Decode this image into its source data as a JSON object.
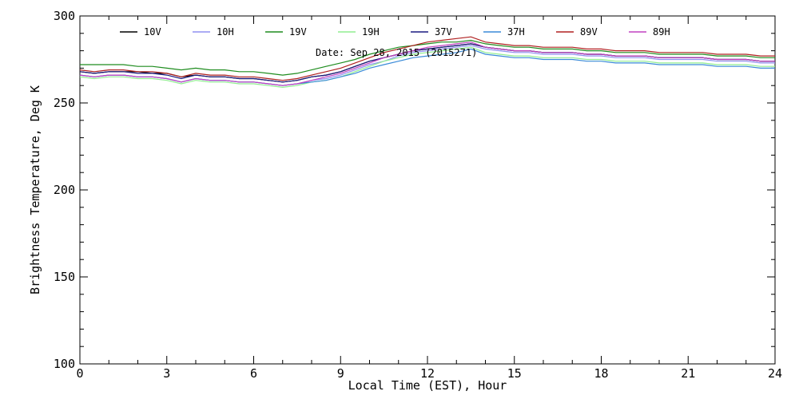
{
  "chart_data": {
    "type": "line",
    "xlabel": "Local Time (EST), Hour",
    "ylabel": "Brightness Temperature, Deg K",
    "annotation": "Date: Sep 28, 2015 (2015271)",
    "xlim": [
      0,
      24
    ],
    "ylim": [
      100,
      300
    ],
    "x_ticks": [
      0,
      3,
      6,
      9,
      12,
      15,
      18,
      21,
      24
    ],
    "y_ticks": [
      100,
      150,
      200,
      250,
      300
    ],
    "grid": false,
    "legend_position": "top",
    "x": [
      0,
      0.5,
      1,
      1.5,
      2,
      2.5,
      3,
      3.5,
      4,
      4.5,
      5,
      5.5,
      6,
      6.5,
      7,
      7.5,
      8,
      8.5,
      9,
      9.5,
      10,
      10.5,
      11,
      11.5,
      12,
      12.5,
      13,
      13.5,
      14,
      14.5,
      15,
      15.5,
      16,
      16.5,
      17,
      17.5,
      18,
      18.5,
      19,
      19.5,
      20,
      20.5,
      21,
      21.5,
      22,
      22.5,
      23,
      23.5,
      24
    ],
    "series": [
      {
        "name": "10V",
        "color": "#000000",
        "values": [
          268,
          267,
          268,
          268,
          268,
          267,
          267,
          265,
          266,
          265,
          265,
          264,
          264,
          263,
          262,
          263,
          265,
          266,
          268,
          271,
          274,
          276,
          278,
          280,
          281,
          282,
          283,
          284,
          282,
          281,
          280,
          280,
          279,
          279,
          279,
          278,
          278,
          277,
          277,
          277,
          276,
          276,
          276,
          276,
          275,
          275,
          275,
          274,
          274
        ]
      },
      {
        "name": "10H",
        "color": "#9090f0",
        "values": [
          266,
          265,
          266,
          266,
          265,
          265,
          264,
          262,
          264,
          263,
          263,
          262,
          262,
          261,
          260,
          261,
          263,
          264,
          266,
          269,
          272,
          274,
          277,
          279,
          280,
          281,
          282,
          283,
          281,
          280,
          279,
          279,
          278,
          278,
          278,
          277,
          277,
          276,
          276,
          276,
          275,
          275,
          275,
          275,
          274,
          274,
          274,
          273,
          273
        ]
      },
      {
        "name": "19V",
        "color": "#1e8c1e",
        "values": [
          272,
          272,
          272,
          272,
          271,
          271,
          270,
          269,
          270,
          269,
          269,
          268,
          268,
          267,
          266,
          267,
          269,
          271,
          273,
          275,
          278,
          280,
          282,
          283,
          284,
          285,
          285,
          286,
          284,
          283,
          282,
          282,
          281,
          281,
          281,
          280,
          280,
          279,
          279,
          279,
          278,
          278,
          278,
          278,
          277,
          277,
          277,
          276,
          276
        ]
      },
      {
        "name": "19H",
        "color": "#90ee90",
        "values": [
          265,
          264,
          265,
          265,
          264,
          264,
          263,
          261,
          263,
          262,
          262,
          261,
          261,
          260,
          259,
          260,
          262,
          263,
          265,
          268,
          271,
          274,
          276,
          278,
          279,
          280,
          281,
          282,
          279,
          278,
          277,
          277,
          276,
          276,
          276,
          275,
          275,
          274,
          274,
          274,
          273,
          273,
          273,
          273,
          272,
          272,
          272,
          271,
          271
        ]
      },
      {
        "name": "37V",
        "color": "#1a1a80",
        "values": [
          268,
          267,
          268,
          268,
          267,
          267,
          266,
          264,
          266,
          265,
          265,
          264,
          264,
          263,
          262,
          263,
          265,
          266,
          268,
          271,
          274,
          276,
          278,
          280,
          281,
          282,
          283,
          284,
          282,
          281,
          280,
          280,
          279,
          279,
          279,
          278,
          278,
          277,
          277,
          277,
          276,
          276,
          276,
          276,
          275,
          275,
          275,
          274,
          274
        ]
      },
      {
        "name": "37H",
        "color": "#3a8ad8",
        "values": [
          266,
          265,
          266,
          266,
          265,
          265,
          264,
          262,
          264,
          263,
          263,
          262,
          262,
          261,
          260,
          261,
          262,
          263,
          265,
          267,
          270,
          272,
          274,
          276,
          277,
          278,
          279,
          281,
          278,
          277,
          276,
          276,
          275,
          275,
          275,
          274,
          274,
          273,
          273,
          273,
          272,
          272,
          272,
          272,
          271,
          271,
          271,
          270,
          270
        ]
      },
      {
        "name": "89V",
        "color": "#b02020",
        "values": [
          269,
          268,
          269,
          269,
          268,
          268,
          267,
          265,
          267,
          266,
          266,
          265,
          265,
          264,
          263,
          264,
          266,
          268,
          270,
          273,
          276,
          279,
          281,
          283,
          285,
          286,
          287,
          288,
          285,
          284,
          283,
          283,
          282,
          282,
          282,
          281,
          281,
          280,
          280,
          280,
          279,
          279,
          279,
          279,
          278,
          278,
          278,
          277,
          277
        ]
      },
      {
        "name": "89H",
        "color": "#c040c0",
        "values": [
          266,
          265,
          266,
          266,
          265,
          265,
          264,
          262,
          264,
          263,
          263,
          262,
          262,
          261,
          260,
          261,
          263,
          265,
          267,
          270,
          273,
          276,
          278,
          280,
          282,
          283,
          284,
          285,
          282,
          281,
          280,
          280,
          279,
          279,
          279,
          278,
          278,
          277,
          277,
          277,
          276,
          276,
          276,
          276,
          275,
          275,
          275,
          274,
          274
        ]
      }
    ]
  }
}
